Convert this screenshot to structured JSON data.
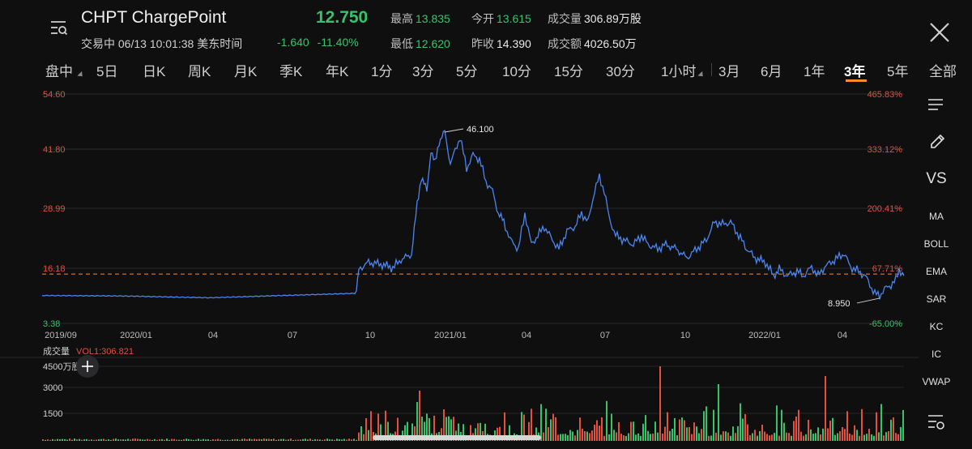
{
  "header": {
    "title": "CHPT ChargePoint",
    "status_line": "交易中 06/13 10:01:38 美东时间",
    "price": "12.750",
    "change": "-1.640",
    "change_pct": "-11.40%",
    "stats": {
      "high_label": "最高",
      "high": "13.835",
      "open_label": "今开",
      "open": "13.615",
      "volume_label": "成交量",
      "volume": "306.89万股",
      "low_label": "最低",
      "low": "12.620",
      "prev_close_label": "昨收",
      "prev_close": "14.390",
      "turnover_label": "成交额",
      "turnover": "4026.50万"
    }
  },
  "periods": [
    "盘中",
    "5日",
    "日K",
    "周K",
    "月K",
    "季K",
    "年K",
    "1分",
    "3分",
    "5分",
    "10分",
    "15分",
    "30分",
    "1小时",
    "3月",
    "6月",
    "1年",
    "3年",
    "5年",
    "全部"
  ],
  "active_period": "3年",
  "chart": {
    "y_left": [
      "54.60",
      "41.80",
      "28.99",
      "16.18",
      "3.38"
    ],
    "y_right": [
      "465.83%",
      "333.12%",
      "200.41%",
      "67.71%",
      "-65.00%"
    ],
    "x_labels": [
      "2019/09",
      "2020/01",
      "04",
      "07",
      "10",
      "2021/01",
      "04",
      "07",
      "10",
      "2022/01",
      "04"
    ],
    "max_marker": "46.100",
    "min_marker": "8.950",
    "ref_price": 14.39,
    "colors": {
      "line": "#4a86f0",
      "up": "#e2503f",
      "down": "#35c46b",
      "ref": "#ff8a2a"
    }
  },
  "volume": {
    "title": "成交量",
    "indicator": "VOL1:306.821",
    "y_labels": [
      "4500万股",
      "3000",
      "1500"
    ]
  },
  "side_tools": [
    "VS",
    "MA",
    "BOLL",
    "EMA",
    "SAR",
    "KC",
    "IC",
    "VWAP"
  ]
}
